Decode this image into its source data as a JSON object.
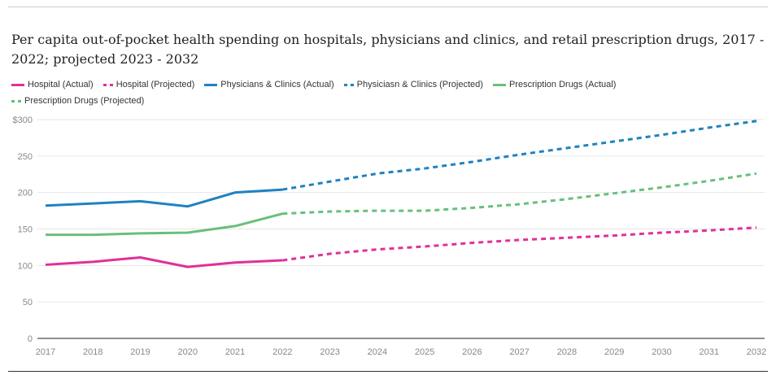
{
  "chart_data": {
    "type": "line",
    "title": "Per capita out-of-pocket health spending on hospitals, physicians and clinics, and retail prescription drugs, 2017 - 2022; projected 2023 - 2032",
    "xlabel": "",
    "ylabel": "",
    "x": [
      2017,
      2018,
      2019,
      2020,
      2021,
      2022,
      2023,
      2024,
      2025,
      2026,
      2027,
      2028,
      2029,
      2030,
      2031,
      2032
    ],
    "x_tick_labels": [
      "2017",
      "2018",
      "2019",
      "2020",
      "2021",
      "2022",
      "2023",
      "2024",
      "2025",
      "2026",
      "2027",
      "2028",
      "2029",
      "2030",
      "2031",
      "2032"
    ],
    "y_ticks": [
      0,
      50,
      100,
      150,
      200,
      250,
      300
    ],
    "y_tick_labels": [
      "0",
      "50",
      "100",
      "150",
      "200",
      "250",
      "$300"
    ],
    "ylim": [
      0,
      300
    ],
    "grid": true,
    "legend_placement": "top",
    "series": [
      {
        "name": "Hospital (Actual)",
        "color": "#e0309a",
        "dashed": false,
        "x": [
          2017,
          2018,
          2019,
          2020,
          2021,
          2022
        ],
        "values": [
          101,
          105,
          111,
          98,
          104,
          107
        ]
      },
      {
        "name": "Hospital (Projected)",
        "color": "#e0309a",
        "dashed": true,
        "x": [
          2022,
          2023,
          2024,
          2025,
          2026,
          2027,
          2028,
          2029,
          2030,
          2031,
          2032
        ],
        "values": [
          107,
          116,
          122,
          126,
          131,
          135,
          138,
          141,
          145,
          148,
          152
        ]
      },
      {
        "name": "Physicians & Clinics (Actual)",
        "color": "#1f82c0",
        "dashed": false,
        "x": [
          2017,
          2018,
          2019,
          2020,
          2021,
          2022
        ],
        "values": [
          182,
          185,
          188,
          181,
          200,
          204
        ]
      },
      {
        "name": "Physiciasn & Clinics (Projected)",
        "color": "#1f82c0",
        "dashed": true,
        "x": [
          2022,
          2023,
          2024,
          2025,
          2026,
          2027,
          2028,
          2029,
          2030,
          2031,
          2032
        ],
        "values": [
          204,
          215,
          226,
          233,
          242,
          252,
          261,
          270,
          279,
          289,
          298
        ]
      },
      {
        "name": "Prescription Drugs (Actual)",
        "color": "#67c07a",
        "dashed": false,
        "x": [
          2017,
          2018,
          2019,
          2020,
          2021,
          2022
        ],
        "values": [
          142,
          142,
          144,
          145,
          154,
          171
        ]
      },
      {
        "name": "Prescription Drugs (Projected)",
        "color": "#67c07a",
        "dashed": true,
        "x": [
          2022,
          2023,
          2024,
          2025,
          2026,
          2027,
          2028,
          2029,
          2030,
          2031,
          2032
        ],
        "values": [
          171,
          174,
          175,
          175,
          179,
          184,
          191,
          199,
          207,
          216,
          226
        ]
      }
    ]
  }
}
